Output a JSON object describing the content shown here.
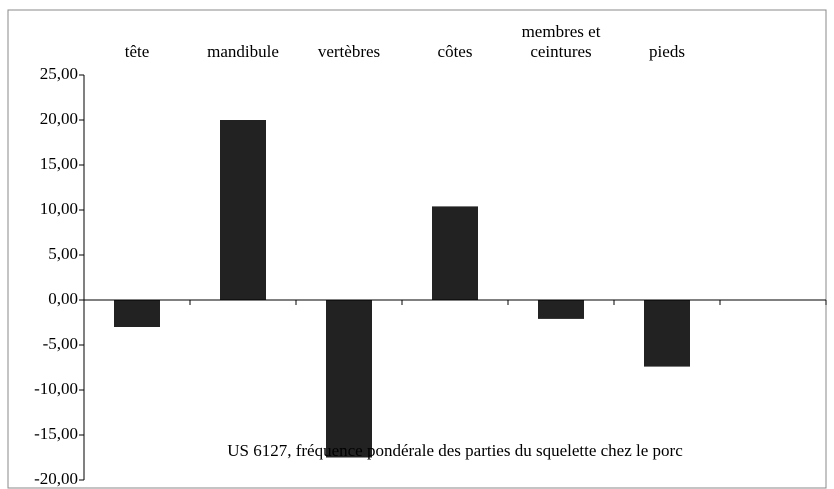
{
  "chart_data": {
    "type": "bar",
    "title": "US 6127, fréquence pondérale des parties du squelette chez le porc",
    "categories": [
      "tête",
      "mandibule",
      "vertèbres",
      "côtes",
      "membres et ceintures",
      "pieds",
      null
    ],
    "values": [
      -3.0,
      20.0,
      -17.5,
      10.4,
      -2.1,
      -7.4,
      null
    ],
    "color": "#222222",
    "ylim": [
      -20,
      25
    ],
    "yticks": [
      {
        "value": -20,
        "label": "-20,00"
      },
      {
        "value": -15,
        "label": "-15,00"
      },
      {
        "value": -10,
        "label": "-10,00"
      },
      {
        "value": -5,
        "label": "-5,00"
      },
      {
        "value": 0,
        "label": "0,00"
      },
      {
        "value": 5,
        "label": "5,00"
      },
      {
        "value": 10,
        "label": "10,00"
      },
      {
        "value": 15,
        "label": "15,00"
      },
      {
        "value": 20,
        "label": "20,00"
      },
      {
        "value": 25,
        "label": "25,00"
      }
    ],
    "grid": false
  }
}
